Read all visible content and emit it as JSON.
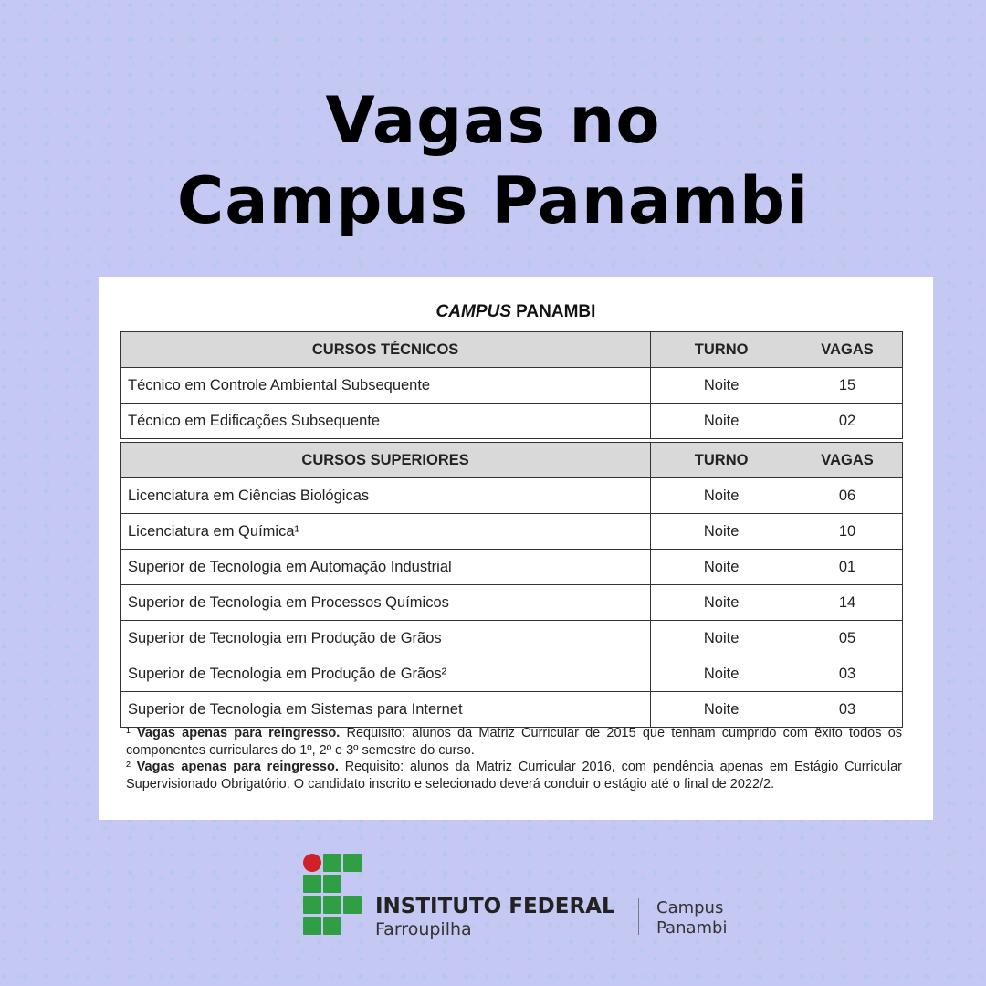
{
  "headline": {
    "line1": "Vagas no",
    "line2": "Campus Panambi"
  },
  "card": {
    "title_italic": "CAMPUS",
    "title_rest": " PANAMBI",
    "tecnicos": {
      "headers": [
        "CURSOS TÉCNICOS",
        "TURNO",
        "VAGAS"
      ],
      "rows": [
        [
          "Técnico em Controle Ambiental Subsequente",
          "Noite",
          "15"
        ],
        [
          "Técnico em Edificações Subsequente",
          "Noite",
          "02"
        ]
      ]
    },
    "superiores": {
      "headers": [
        "CURSOS SUPERIORES",
        "TURNO",
        "VAGAS"
      ],
      "rows": [
        [
          "Licenciatura em Ciências Biológicas",
          "Noite",
          "06"
        ],
        [
          "Licenciatura em Química¹",
          "Noite",
          "10"
        ],
        [
          "Superior de Tecnologia em Automação Industrial",
          "Noite",
          "01"
        ],
        [
          "Superior de Tecnologia em Processos Químicos",
          "Noite",
          "14"
        ],
        [
          "Superior de Tecnologia em Produção de Grãos",
          "Noite",
          "05"
        ],
        [
          "Superior de Tecnologia em Produção de Grãos²",
          "Noite",
          "03"
        ],
        [
          "Superior de Tecnologia em Sistemas para Internet",
          "Noite",
          "03"
        ]
      ]
    },
    "notes": [
      {
        "mark": "¹ ",
        "bold": "Vagas apenas para reingresso.",
        "text": " Requisito: alunos da Matriz Curricular de 2015 que tenham cumprido com êxito todos os componentes curriculares do 1º, 2º e 3º semestre do curso."
      },
      {
        "mark": "² ",
        "bold": "Vagas apenas para reingresso.",
        "text": " Requisito: alunos da Matriz Curricular 2016, com pendência apenas em Estágio Curricular Supervisionado Obrigatório. O candidato inscrito e selecionado deverá concluir o estágio até o final de 2022/2."
      }
    ]
  },
  "logo": {
    "name": "INSTITUTO FEDERAL",
    "sub": "Farroupilha",
    "campus_line1": "Campus",
    "campus_line2": "Panambi",
    "green": "#2f9e44",
    "red": "#d0202a"
  }
}
